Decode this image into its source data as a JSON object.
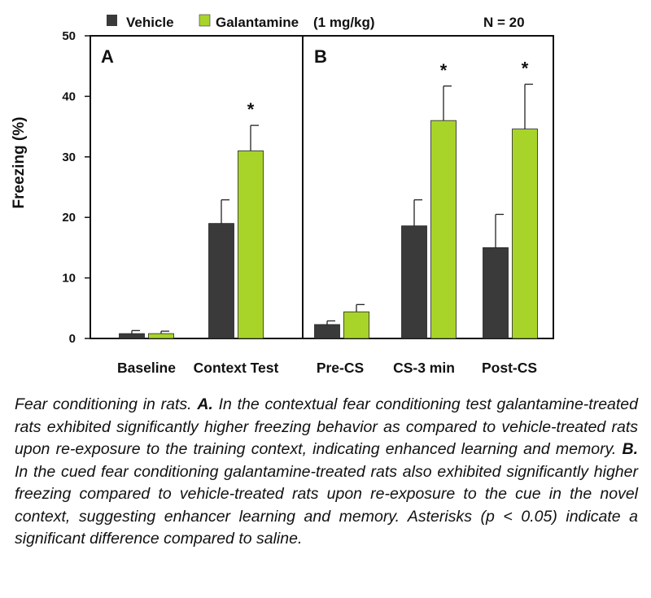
{
  "chart_data": {
    "type": "bar",
    "ylabel": "Freezing (%)",
    "ylim": [
      0,
      50
    ],
    "yticks": [
      0,
      10,
      20,
      30,
      40,
      50
    ],
    "n_label": "N = 20",
    "legend_position": "top",
    "series": [
      {
        "name": "Vehicle",
        "color": "#3a3a3a"
      },
      {
        "name": "Galantamine",
        "name_suffix": "(1 mg/kg)",
        "color": "#a8d42a"
      }
    ],
    "panels": [
      {
        "label": "A",
        "categories": [
          "Baseline",
          "Context Test"
        ],
        "values": {
          "Vehicle": [
            0.8,
            19.0
          ],
          "Galantamine": [
            0.8,
            31.0
          ]
        },
        "errors": {
          "Vehicle": [
            0.5,
            3.9
          ],
          "Galantamine": [
            0.4,
            4.2
          ]
        },
        "significant": [
          false,
          true
        ]
      },
      {
        "label": "B",
        "categories": [
          "Pre-CS",
          "CS-3 min",
          "Post-CS"
        ],
        "values": {
          "Vehicle": [
            2.3,
            18.6,
            15.0
          ],
          "Galantamine": [
            4.4,
            36.0,
            34.6
          ]
        },
        "errors": {
          "Vehicle": [
            0.6,
            4.3,
            5.5
          ],
          "Galantamine": [
            1.2,
            5.7,
            7.4
          ]
        },
        "significant": [
          false,
          true,
          true
        ]
      }
    ],
    "significance_marker": "*"
  },
  "caption": {
    "intro": "Fear conditioning in rats. ",
    "label_a": "A.",
    "text_a": " In the contextual fear conditioning test galantamine-treated rats exhibited significantly higher freezing behavior as compared to vehicle-treated rats upon re-exposure to the training context, indicating enhanced learning and memory. ",
    "label_b": "B.",
    "text_b": " In the cued fear conditioning galantamine-treated rats also exhibited significantly higher freezing compared to vehicle-treated rats upon re-exposure to the cue in the novel context, suggesting enhancer learning and memory. Asterisks (p < 0.05) indicate a significant difference compared to saline."
  }
}
